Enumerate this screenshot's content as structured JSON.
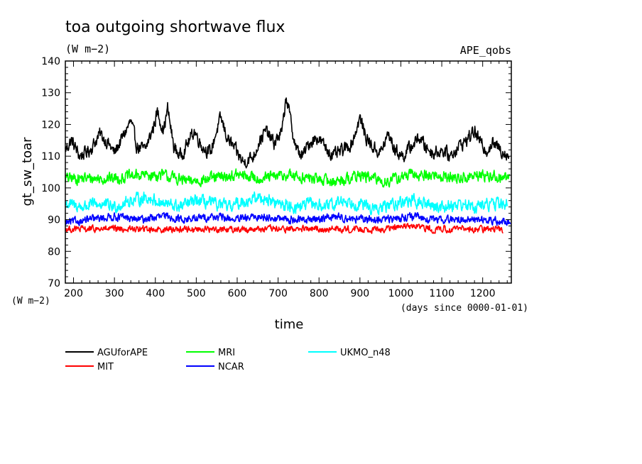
{
  "chart_data": {
    "type": "line",
    "title": "toa outgoing shortwave flux",
    "units": "(W m−2)",
    "source_label": "APE_qobs",
    "xlabel": "time",
    "x_units": "(days since 0000-01-01)",
    "ylabel": "gt_sw_toar",
    "y_units": "(W m−2)",
    "xlim": [
      180,
      1270
    ],
    "ylim": [
      70,
      140
    ],
    "x_ticks": [
      200,
      300,
      400,
      500,
      600,
      700,
      800,
      900,
      1000,
      1100,
      1200
    ],
    "y_ticks": [
      70,
      80,
      90,
      100,
      110,
      120,
      130,
      140
    ],
    "x_start": 180,
    "x_end": 1265,
    "series": [
      {
        "name": "AGUforAPE",
        "color": "#000000",
        "keypoints": [
          [
            180,
            112
          ],
          [
            195,
            115
          ],
          [
            215,
            110
          ],
          [
            240,
            112
          ],
          [
            265,
            117
          ],
          [
            285,
            114
          ],
          [
            300,
            111
          ],
          [
            320,
            116
          ],
          [
            340,
            121
          ],
          [
            355,
            113
          ],
          [
            375,
            112
          ],
          [
            395,
            119
          ],
          [
            405,
            124
          ],
          [
            420,
            118
          ],
          [
            430,
            125
          ],
          [
            445,
            113
          ],
          [
            460,
            110
          ],
          [
            475,
            113
          ],
          [
            495,
            118
          ],
          [
            515,
            113
          ],
          [
            535,
            111
          ],
          [
            545,
            116
          ],
          [
            560,
            122
          ],
          [
            575,
            116
          ],
          [
            595,
            112
          ],
          [
            615,
            108
          ],
          [
            640,
            110
          ],
          [
            655,
            115
          ],
          [
            670,
            118
          ],
          [
            690,
            114
          ],
          [
            710,
            118
          ],
          [
            720,
            129
          ],
          [
            735,
            118
          ],
          [
            745,
            112
          ],
          [
            760,
            110
          ],
          [
            775,
            114
          ],
          [
            795,
            116
          ],
          [
            815,
            113
          ],
          [
            835,
            110
          ],
          [
            860,
            112
          ],
          [
            880,
            114
          ],
          [
            900,
            122
          ],
          [
            915,
            116
          ],
          [
            930,
            113
          ],
          [
            950,
            111
          ],
          [
            970,
            117
          ],
          [
            985,
            112
          ],
          [
            1005,
            110
          ],
          [
            1025,
            113
          ],
          [
            1045,
            116
          ],
          [
            1060,
            113
          ],
          [
            1080,
            111
          ],
          [
            1100,
            112
          ],
          [
            1120,
            110
          ],
          [
            1140,
            113
          ],
          [
            1160,
            115
          ],
          [
            1180,
            118
          ],
          [
            1195,
            114
          ],
          [
            1210,
            112
          ],
          [
            1225,
            114
          ],
          [
            1245,
            112
          ],
          [
            1265,
            110
          ]
        ],
        "noise": 3.2,
        "stop": 1265
      },
      {
        "name": "MRI",
        "color": "#00ff00",
        "keypoints": [
          [
            180,
            103
          ],
          [
            240,
            103
          ],
          [
            300,
            103
          ],
          [
            360,
            104
          ],
          [
            420,
            104
          ],
          [
            480,
            102
          ],
          [
            540,
            103
          ],
          [
            600,
            104
          ],
          [
            660,
            103
          ],
          [
            720,
            104
          ],
          [
            780,
            103
          ],
          [
            840,
            102
          ],
          [
            900,
            104
          ],
          [
            960,
            102
          ],
          [
            1020,
            104
          ],
          [
            1080,
            104
          ],
          [
            1140,
            103
          ],
          [
            1200,
            104
          ],
          [
            1265,
            103
          ]
        ],
        "noise": 2.8,
        "stop": 1265
      },
      {
        "name": "UKMO_n48",
        "color": "#00ffff",
        "keypoints": [
          [
            180,
            95
          ],
          [
            220,
            94
          ],
          [
            260,
            95
          ],
          [
            300,
            94
          ],
          [
            340,
            96
          ],
          [
            380,
            97
          ],
          [
            420,
            95
          ],
          [
            460,
            94
          ],
          [
            500,
            96
          ],
          [
            540,
            95
          ],
          [
            580,
            94
          ],
          [
            620,
            96
          ],
          [
            660,
            97
          ],
          [
            700,
            95
          ],
          [
            740,
            94
          ],
          [
            780,
            95
          ],
          [
            820,
            94
          ],
          [
            860,
            96
          ],
          [
            900,
            95
          ],
          [
            940,
            93
          ],
          [
            980,
            95
          ],
          [
            1020,
            96
          ],
          [
            1060,
            95
          ],
          [
            1100,
            94
          ],
          [
            1140,
            95
          ],
          [
            1180,
            94
          ],
          [
            1220,
            95
          ],
          [
            1260,
            95
          ]
        ],
        "noise": 3.0,
        "stop": 1260
      },
      {
        "name": "NCAR",
        "color": "#0000ff",
        "keypoints": [
          [
            180,
            89
          ],
          [
            240,
            90
          ],
          [
            300,
            91
          ],
          [
            360,
            90
          ],
          [
            420,
            91
          ],
          [
            480,
            90
          ],
          [
            540,
            91
          ],
          [
            600,
            90
          ],
          [
            660,
            91
          ],
          [
            720,
            90
          ],
          [
            780,
            90
          ],
          [
            840,
            91
          ],
          [
            900,
            90
          ],
          [
            960,
            90
          ],
          [
            1020,
            91
          ],
          [
            1080,
            90
          ],
          [
            1140,
            90
          ],
          [
            1200,
            90
          ],
          [
            1268,
            89
          ]
        ],
        "noise": 1.9,
        "stop": 1268
      },
      {
        "name": "MIT",
        "color": "#ff0000",
        "keypoints": [
          [
            180,
            87
          ],
          [
            240,
            87
          ],
          [
            300,
            87
          ],
          [
            360,
            87
          ],
          [
            420,
            87
          ],
          [
            480,
            87
          ],
          [
            540,
            87
          ],
          [
            600,
            87
          ],
          [
            660,
            87
          ],
          [
            720,
            87
          ],
          [
            780,
            87
          ],
          [
            840,
            87
          ],
          [
            900,
            87
          ],
          [
            960,
            87
          ],
          [
            1020,
            88
          ],
          [
            1080,
            87
          ],
          [
            1140,
            87
          ],
          [
            1200,
            87
          ],
          [
            1250,
            87
          ]
        ],
        "noise": 1.6,
        "stop": 1250
      }
    ],
    "legend": [
      {
        "name": "AGUforAPE",
        "color": "#000000"
      },
      {
        "name": "MRI",
        "color": "#00ff00"
      },
      {
        "name": "UKMO_n48",
        "color": "#00ffff"
      },
      {
        "name": "MIT",
        "color": "#ff0000"
      },
      {
        "name": "NCAR",
        "color": "#0000ff"
      }
    ]
  }
}
